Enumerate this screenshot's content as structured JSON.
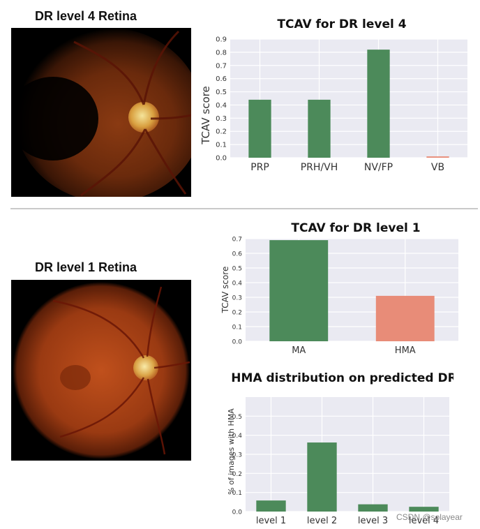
{
  "panels": {
    "top_title": "DR level 4 Retina",
    "bottom_title": "DR level 1 Retina"
  },
  "watermark": "CSDN @solayear",
  "colors": {
    "green": "#4c8a5a",
    "salmon": "#e88c78",
    "plot_bg": "#eaeaf2",
    "grid": "#ffffff"
  },
  "chart_data": [
    {
      "id": "tcav-dr4",
      "type": "bar",
      "title": "TCAV for DR level 4",
      "xlabel": "",
      "ylabel": "TCAV score",
      "categories": [
        "PRP",
        "PRH/VH",
        "NV/FP",
        "VB"
      ],
      "values": [
        0.44,
        0.44,
        0.82,
        0.01
      ],
      "bar_colors": [
        "#4c8a5a",
        "#4c8a5a",
        "#4c8a5a",
        "#e88c78"
      ],
      "ylim": [
        0,
        0.9
      ],
      "yticks": [
        "0.0",
        "0.1",
        "0.2",
        "0.3",
        "0.4",
        "0.5",
        "0.6",
        "0.7",
        "0.8",
        "0.9"
      ],
      "grid": true
    },
    {
      "id": "tcav-dr1",
      "type": "bar",
      "title": "TCAV for DR level 1",
      "xlabel": "",
      "ylabel": "TCAV score",
      "categories": [
        "MA",
        "HMA"
      ],
      "values": [
        0.69,
        0.31
      ],
      "bar_colors": [
        "#4c8a5a",
        "#e88c78"
      ],
      "ylim": [
        0,
        0.7
      ],
      "yticks": [
        "0.0",
        "0.1",
        "0.2",
        "0.3",
        "0.4",
        "0.5",
        "0.6",
        "0.7"
      ],
      "grid": true
    },
    {
      "id": "hma-dist",
      "type": "bar",
      "title": "HMA distribution on predicted DR",
      "xlabel": "",
      "ylabel": "% of images with HMA",
      "categories": [
        "level 1",
        "level 2",
        "level 3",
        "level 4"
      ],
      "values": [
        0.058,
        0.362,
        0.038,
        0.025
      ],
      "bar_colors": [
        "#4c8a5a",
        "#4c8a5a",
        "#4c8a5a",
        "#4c8a5a"
      ],
      "ylim": [
        0,
        0.6
      ],
      "yticks": [
        "0.0",
        "0.1",
        "0.2",
        "0.3",
        "0.4",
        "0.5"
      ],
      "grid": true
    }
  ]
}
